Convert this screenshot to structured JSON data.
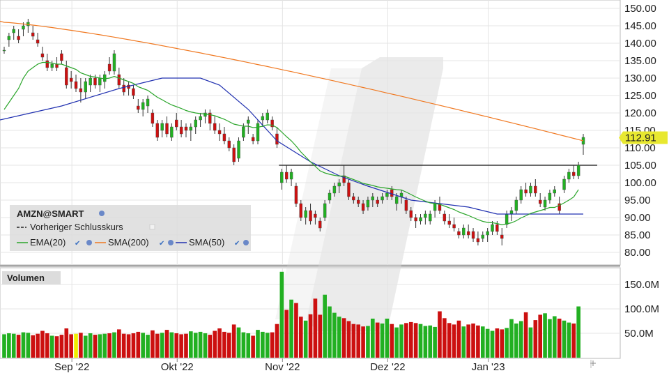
{
  "price_axis_labels": [
    "150.00",
    "145.00",
    "140.00",
    "135.00",
    "130.00",
    "125.00",
    "120.00",
    "115.00",
    "110.00",
    "105.00",
    "100.00",
    "95.00",
    "90.00",
    "85.00",
    "80.00"
  ],
  "volume_axis_labels": [
    "150.0M",
    "100.0M",
    "50.0M"
  ],
  "date_labels": [
    "Sep '22",
    "Okt '22",
    "Nov '22",
    "Dez '22",
    "Jan '23"
  ],
  "current_price_label": "112.91",
  "legend": {
    "symbol": "AMZN@SMART",
    "prev_close": "Vorheriger Schlusskurs",
    "ema": "EMA(20)",
    "sma200": "SMA(200)",
    "sma50": "SMA(50)"
  },
  "volume_panel_title": "Volumen",
  "colors": {
    "up": "#22b022",
    "down": "#cc1010",
    "ema": "#2aa52a",
    "sma200": "#f07820",
    "sma50": "#2030b0",
    "price_tag": "#e8e830",
    "volume_highlight": "#f0f000"
  },
  "chart_data": [
    {
      "type": "candlestick",
      "ylim": [
        77,
        151
      ],
      "previous_close": 105,
      "candles": [
        [
          138,
          139,
          137,
          138
        ],
        [
          141,
          143,
          139,
          142
        ],
        [
          143,
          145,
          141,
          144
        ],
        [
          142,
          144,
          140,
          141
        ],
        [
          144,
          146,
          142,
          145
        ],
        [
          145,
          147,
          143,
          146
        ],
        [
          143,
          145,
          141,
          142
        ],
        [
          141,
          143,
          139,
          140
        ],
        [
          137,
          139,
          135,
          136
        ],
        [
          135,
          137,
          132,
          133
        ],
        [
          133,
          135,
          132,
          134
        ],
        [
          134,
          136,
          132,
          133
        ],
        [
          137,
          138,
          134,
          135
        ],
        [
          133,
          135,
          127,
          128
        ],
        [
          130,
          132,
          127,
          129
        ],
        [
          129,
          131,
          126,
          127
        ],
        [
          127,
          130,
          123,
          126
        ],
        [
          126,
          130,
          124,
          129
        ],
        [
          128,
          131,
          126,
          130
        ],
        [
          130,
          131,
          127,
          128
        ],
        [
          128,
          131,
          126,
          130
        ],
        [
          129,
          132,
          127,
          131
        ],
        [
          134,
          136,
          131,
          132
        ],
        [
          132,
          138,
          131,
          137
        ],
        [
          131,
          133,
          127,
          128
        ],
        [
          128,
          130,
          125,
          126
        ],
        [
          128,
          129,
          125,
          127
        ],
        [
          127,
          128,
          124,
          125
        ],
        [
          122,
          124,
          120,
          121
        ],
        [
          121,
          124,
          119,
          123
        ],
        [
          122,
          125,
          120,
          124
        ],
        [
          120,
          121,
          116,
          117
        ],
        [
          117,
          118,
          112,
          113
        ],
        [
          115,
          118,
          113,
          117
        ],
        [
          117,
          119,
          113,
          114
        ],
        [
          113,
          117,
          112,
          116
        ],
        [
          118,
          120,
          115,
          116
        ],
        [
          116,
          118,
          113,
          114
        ],
        [
          116,
          117,
          113,
          115
        ],
        [
          115,
          117,
          112,
          116
        ],
        [
          116,
          119,
          114,
          118
        ],
        [
          118,
          120,
          116,
          119
        ],
        [
          119,
          121,
          117,
          120
        ],
        [
          120,
          121,
          115,
          117
        ],
        [
          117,
          119,
          114,
          115
        ],
        [
          115,
          117,
          112,
          114
        ],
        [
          114,
          116,
          111,
          112
        ],
        [
          112,
          113,
          109,
          110
        ],
        [
          110,
          111,
          105,
          106
        ],
        [
          107,
          113,
          106,
          112
        ],
        [
          113,
          117,
          112,
          116
        ],
        [
          117,
          119,
          114,
          118
        ],
        [
          113,
          114,
          111,
          112
        ],
        [
          112,
          118,
          111,
          117
        ],
        [
          118,
          120,
          116,
          119
        ],
        [
          118,
          121,
          117,
          120
        ],
        [
          118,
          119,
          115,
          116
        ],
        [
          114,
          116,
          110,
          111
        ],
        [
          100,
          104,
          98,
          103
        ],
        [
          103,
          105,
          100,
          101
        ],
        [
          101,
          104,
          99,
          103
        ],
        [
          99,
          100,
          93,
          94
        ],
        [
          94,
          95,
          89,
          90
        ],
        [
          90,
          93,
          88,
          92
        ],
        [
          92,
          94,
          88,
          89
        ],
        [
          91,
          92,
          88,
          90
        ],
        [
          89,
          90,
          86,
          87
        ],
        [
          90,
          95,
          89,
          94
        ],
        [
          95,
          98,
          94,
          97
        ],
        [
          97,
          100,
          96,
          99
        ],
        [
          99,
          101,
          97,
          100
        ],
        [
          102,
          105,
          99,
          100
        ],
        [
          100,
          101,
          95,
          96
        ],
        [
          96,
          97,
          94,
          95
        ],
        [
          95,
          96,
          93,
          94
        ],
        [
          94,
          95,
          91,
          92
        ],
        [
          93,
          96,
          92,
          95
        ],
        [
          95,
          97,
          93,
          96
        ],
        [
          95,
          96,
          93,
          94
        ],
        [
          95,
          97,
          94,
          96
        ],
        [
          96,
          98,
          95,
          97
        ],
        [
          98,
          99,
          95,
          96
        ],
        [
          94,
          97,
          92,
          96
        ],
        [
          96,
          98,
          94,
          97
        ],
        [
          95,
          96,
          91,
          92
        ],
        [
          92,
          93,
          89,
          90
        ],
        [
          90,
          91,
          87,
          89
        ],
        [
          89,
          91,
          88,
          90
        ],
        [
          90,
          92,
          88,
          91
        ],
        [
          89,
          92,
          88,
          91
        ],
        [
          92,
          95,
          90,
          94
        ],
        [
          94,
          96,
          91,
          92
        ],
        [
          91,
          92,
          88,
          89
        ],
        [
          89,
          91,
          87,
          88
        ],
        [
          88,
          90,
          86,
          87
        ],
        [
          86,
          87,
          84,
          85
        ],
        [
          85,
          88,
          84,
          87
        ],
        [
          86,
          88,
          84,
          85
        ],
        [
          86,
          87,
          83,
          84
        ],
        [
          84,
          86,
          82,
          83
        ],
        [
          84,
          86,
          83,
          85
        ],
        [
          85,
          87,
          83,
          86
        ],
        [
          86,
          89,
          85,
          88
        ],
        [
          88,
          89,
          85,
          86
        ],
        [
          85,
          87,
          82,
          84
        ],
        [
          88,
          92,
          87,
          91
        ],
        [
          91,
          93,
          89,
          92
        ],
        [
          92,
          96,
          91,
          95
        ],
        [
          95,
          99,
          94,
          98
        ],
        [
          98,
          100,
          96,
          97
        ],
        [
          97,
          100,
          96,
          99
        ],
        [
          99,
          101,
          96,
          97
        ],
        [
          95,
          97,
          93,
          94
        ],
        [
          93,
          96,
          92,
          95
        ],
        [
          95,
          98,
          94,
          97
        ],
        [
          97,
          99,
          96,
          98
        ],
        [
          94,
          96,
          91,
          92
        ],
        [
          98,
          102,
          97,
          101
        ],
        [
          101,
          104,
          100,
          103
        ],
        [
          103,
          105,
          101,
          102
        ],
        [
          102,
          106,
          101,
          105
        ],
        [
          111,
          114,
          108,
          113
        ]
      ],
      "volume": [
        48,
        50,
        49,
        47,
        52,
        51,
        46,
        49,
        55,
        50,
        45,
        44,
        47,
        60,
        48,
        49,
        51,
        45,
        50,
        47,
        48,
        49,
        50,
        52,
        58,
        49,
        48,
        50,
        53,
        51,
        47,
        56,
        49,
        51,
        57,
        52,
        50,
        48,
        49,
        54,
        51,
        53,
        50,
        47,
        55,
        60,
        53,
        51,
        68,
        62,
        52,
        50,
        45,
        57,
        53,
        51,
        52,
        69,
        176,
        98,
        119,
        112,
        84,
        76,
        89,
        121,
        88,
        129,
        105,
        92,
        84,
        81,
        75,
        69,
        68,
        64,
        65,
        80,
        72,
        70,
        80,
        69,
        62,
        68,
        71,
        73,
        71,
        69,
        65,
        66,
        63,
        95,
        81,
        71,
        68,
        76,
        64,
        68,
        70,
        66,
        64,
        59,
        55,
        60,
        58,
        61,
        79,
        70,
        75,
        93,
        62,
        77,
        88,
        91,
        79,
        85,
        80,
        76,
        72,
        70,
        105
      ],
      "ema20": [
        121,
        123,
        125,
        127,
        130,
        132,
        133,
        134,
        134.5,
        134.5,
        134.3,
        134,
        134,
        133.5,
        133,
        132.5,
        131.5,
        131,
        130.5,
        130.3,
        130,
        129.8,
        130,
        130.5,
        130,
        129.5,
        129,
        128.5,
        127.5,
        127,
        126.5,
        125.5,
        124.5,
        123.8,
        123,
        122.3,
        121.8,
        121.3,
        120.7,
        120.3,
        120,
        119.8,
        119.7,
        119.5,
        119.2,
        118.7,
        118.2,
        117.5,
        116.8,
        116.5,
        116.2,
        116.2,
        115.8,
        115.9,
        116.2,
        116.6,
        116.5,
        115.8,
        114.5,
        113.2,
        112,
        110.5,
        108.8,
        107.4,
        106,
        104.7,
        103.4,
        102.8,
        102.4,
        102.1,
        101.9,
        101.9,
        101.4,
        100.9,
        100.4,
        99.8,
        99.5,
        99.2,
        98.8,
        98.6,
        98.4,
        98.2,
        98,
        97.9,
        97.3,
        96.6,
        95.9,
        95.3,
        94.7,
        94.2,
        94,
        93.8,
        93.3,
        92.8,
        92.3,
        91.6,
        91.1,
        90.6,
        90,
        89.4,
        88.9,
        88.6,
        88.5,
        88.3,
        87.9,
        88.2,
        88.5,
        89.1,
        89.9,
        90.5,
        91.2,
        91.6,
        92,
        92.4,
        92.9,
        92.9,
        93.5,
        94.2,
        95,
        95.9,
        98
      ]
    }
  ]
}
